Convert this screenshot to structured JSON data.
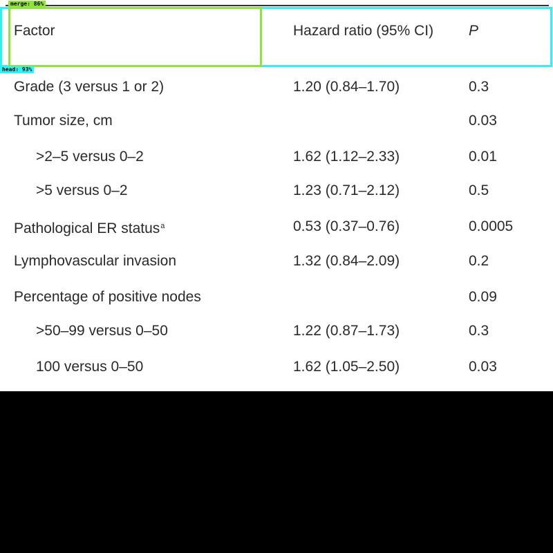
{
  "table": {
    "headers": {
      "factor": "Factor",
      "hazard_ratio": "Hazard ratio (95% CI)",
      "p": "P"
    },
    "rows": [
      {
        "factor": "Grade (3 versus 1 or 2)",
        "hr": "1.20 (0.84–1.70)",
        "p": "0.3"
      },
      {
        "factor": "Tumor size, cm",
        "hr": "",
        "p": "0.03"
      },
      {
        "factor": ">2–5 versus 0–2",
        "hr": "1.62 (1.12–2.33)",
        "p": "0.01"
      },
      {
        "factor": ">5 versus 0–2",
        "hr": "1.23 (0.71–2.12)",
        "p": "0.5"
      },
      {
        "factor": "Pathological ER status",
        "footnote": "a",
        "hr": "0.53 (0.37–0.76)",
        "p": "0.0005"
      },
      {
        "factor": "Lymphovascular invasion",
        "hr": "1.32 (0.84–2.09)",
        "p": "0.2"
      },
      {
        "factor": "Percentage of positive nodes",
        "hr": "",
        "p": "0.09"
      },
      {
        "factor": ">50–99 versus 0–50",
        "hr": "1.22 (0.87–1.73)",
        "p": "0.3"
      },
      {
        "factor": "100 versus 0–50",
        "hr": "1.62 (1.05–2.50)",
        "p": "0.03"
      }
    ]
  },
  "overlays": {
    "merge_label": "merge: 86%",
    "head_label": "head: 93%",
    "merge_color": "#8fe33b",
    "head_color": "#2ef2f7"
  }
}
